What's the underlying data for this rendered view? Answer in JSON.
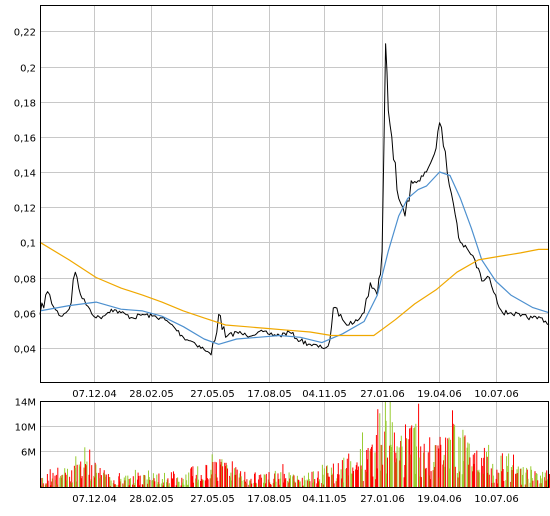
{
  "chart_data": [
    {
      "type": "line",
      "title": "",
      "xlabel": "",
      "ylabel": "",
      "ylim": [
        0.02,
        0.235
      ],
      "y_ticks": [
        0.04,
        0.06,
        0.08,
        0.1,
        0.12,
        0.14,
        0.16,
        0.18,
        0.2,
        0.22
      ],
      "y_tick_labels": [
        "0,04",
        "0,06",
        "0,08",
        "0,1",
        "0,12",
        "0,14",
        "0,16",
        "0,18",
        "0,2",
        "0,22"
      ],
      "x_tick_labels": [
        "07.12.04",
        "28.02.05",
        "27.05.05",
        "17.08.05",
        "04.11.05",
        "27.01.06",
        "19.04.06",
        "10.07.06"
      ],
      "x_tick_dates": [
        "2004-12-07",
        "2005-02-28",
        "2005-05-27",
        "2005-08-17",
        "2005-11-04",
        "2006-01-27",
        "2006-04-19",
        "2006-07-10"
      ],
      "x_range": [
        "2004-09-20",
        "2006-09-25"
      ],
      "grid": true,
      "legend": "none",
      "series": [
        {
          "color": "#000000",
          "x": [
            "2004-09-20",
            "2004-10-01",
            "2004-10-10",
            "2004-10-20",
            "2004-11-01",
            "2004-11-10",
            "2004-11-20",
            "2004-12-01",
            "2004-12-10",
            "2004-12-20",
            "2005-01-01",
            "2005-01-15",
            "2005-02-01",
            "2005-02-15",
            "2005-03-01",
            "2005-03-15",
            "2005-04-01",
            "2005-04-15",
            "2005-05-01",
            "2005-05-15",
            "2005-05-25",
            "2005-06-05",
            "2005-06-15",
            "2005-07-01",
            "2005-07-15",
            "2005-08-01",
            "2005-08-15",
            "2005-09-01",
            "2005-09-15",
            "2005-10-01",
            "2005-10-15",
            "2005-11-01",
            "2005-11-10",
            "2005-11-20",
            "2005-12-01",
            "2005-12-10",
            "2005-12-20",
            "2006-01-01",
            "2006-01-10",
            "2006-01-20",
            "2006-01-27",
            "2006-02-01",
            "2006-02-05",
            "2006-02-10",
            "2006-02-20",
            "2006-03-01",
            "2006-03-10",
            "2006-03-20",
            "2006-04-01",
            "2006-04-10",
            "2006-04-20",
            "2006-05-01",
            "2006-05-10",
            "2006-05-20",
            "2006-06-01",
            "2006-06-10",
            "2006-06-20",
            "2006-07-01",
            "2006-07-10",
            "2006-07-20",
            "2006-08-01",
            "2006-08-15",
            "2006-09-01",
            "2006-09-15",
            "2006-09-25"
          ],
          "values": [
            0.059,
            0.072,
            0.063,
            0.058,
            0.062,
            0.083,
            0.068,
            0.062,
            0.057,
            0.058,
            0.062,
            0.06,
            0.057,
            0.059,
            0.058,
            0.057,
            0.052,
            0.046,
            0.043,
            0.039,
            0.036,
            0.059,
            0.046,
            0.049,
            0.047,
            0.049,
            0.048,
            0.047,
            0.049,
            0.044,
            0.042,
            0.04,
            0.041,
            0.063,
            0.056,
            0.053,
            0.056,
            0.06,
            0.077,
            0.07,
            0.095,
            0.213,
            0.175,
            0.16,
            0.125,
            0.115,
            0.135,
            0.135,
            0.14,
            0.148,
            0.168,
            0.14,
            0.122,
            0.1,
            0.095,
            0.09,
            0.078,
            0.08,
            0.07,
            0.06,
            0.06,
            0.058,
            0.057,
            0.057,
            0.053
          ]
        },
        {
          "color": "#4d90cf",
          "x": [
            "2004-09-20",
            "2004-11-01",
            "2004-12-10",
            "2005-01-15",
            "2005-02-15",
            "2005-03-15",
            "2005-04-15",
            "2005-05-15",
            "2005-06-05",
            "2005-07-01",
            "2005-08-01",
            "2005-09-01",
            "2005-10-01",
            "2005-11-01",
            "2005-12-01",
            "2006-01-01",
            "2006-01-20",
            "2006-02-05",
            "2006-02-20",
            "2006-03-05",
            "2006-03-20",
            "2006-04-01",
            "2006-04-20",
            "2006-05-05",
            "2006-05-20",
            "2006-06-05",
            "2006-06-20",
            "2006-07-10",
            "2006-08-01",
            "2006-09-01",
            "2006-09-25"
          ],
          "values": [
            0.061,
            0.064,
            0.066,
            0.062,
            0.061,
            0.058,
            0.052,
            0.045,
            0.042,
            0.045,
            0.046,
            0.047,
            0.046,
            0.043,
            0.048,
            0.055,
            0.07,
            0.095,
            0.115,
            0.125,
            0.13,
            0.132,
            0.14,
            0.138,
            0.125,
            0.108,
            0.09,
            0.078,
            0.07,
            0.063,
            0.06
          ]
        },
        {
          "color": "#f0a800",
          "x": [
            "2004-09-20",
            "2004-11-01",
            "2004-12-10",
            "2005-01-15",
            "2005-02-15",
            "2005-03-15",
            "2005-04-15",
            "2005-05-15",
            "2005-06-15",
            "2005-07-15",
            "2005-08-15",
            "2005-09-15",
            "2005-10-15",
            "2005-11-15",
            "2005-12-15",
            "2006-01-15",
            "2006-02-15",
            "2006-03-15",
            "2006-04-15",
            "2006-05-15",
            "2006-06-15",
            "2006-07-15",
            "2006-08-15",
            "2006-09-10",
            "2006-09-25"
          ],
          "values": [
            0.1,
            0.09,
            0.08,
            0.074,
            0.07,
            0.066,
            0.061,
            0.057,
            0.053,
            0.052,
            0.051,
            0.05,
            0.049,
            0.047,
            0.047,
            0.047,
            0.056,
            0.065,
            0.073,
            0.083,
            0.09,
            0.092,
            0.094,
            0.096,
            0.096
          ]
        }
      ]
    },
    {
      "type": "bar",
      "title": "",
      "xlabel": "",
      "ylabel": "",
      "ylim": [
        0,
        14
      ],
      "y_ticks": [
        6,
        10,
        14
      ],
      "y_tick_labels": [
        "6M",
        "10M",
        "14M"
      ],
      "x_tick_labels": [
        "07.12.04",
        "28.02.05",
        "27.05.05",
        "17.08.05",
        "04.11.05",
        "27.01.06",
        "19.04.06",
        "10.07.06"
      ],
      "x_tick_dates": [
        "2004-12-07",
        "2005-02-28",
        "2005-05-27",
        "2005-08-17",
        "2005-11-04",
        "2006-01-27",
        "2006-04-19",
        "2006-07-10"
      ],
      "x_range": [
        "2004-09-20",
        "2006-09-25"
      ],
      "grid": true,
      "legend": "none",
      "colors": {
        "up": "#99cc33",
        "down": "#ff0000"
      },
      "series": [
        {
          "x": [
            "2004-10-01",
            "2004-11-10",
            "2004-12-01",
            "2005-01-01",
            "2005-02-01",
            "2005-03-01",
            "2005-04-01",
            "2005-05-01",
            "2005-06-05",
            "2005-07-01",
            "2005-08-01",
            "2005-09-01",
            "2005-10-01",
            "2005-11-15",
            "2005-12-10",
            "2006-01-10",
            "2006-01-27",
            "2006-02-01",
            "2006-02-05",
            "2006-02-20",
            "2006-03-10",
            "2006-04-01",
            "2006-04-20",
            "2006-05-10",
            "2006-06-01",
            "2006-07-01",
            "2006-08-01",
            "2006-09-01"
          ],
          "values": [
            2.0,
            4.5,
            5.0,
            2.0,
            2.5,
            2.5,
            2.0,
            3.0,
            5.0,
            3.0,
            2.5,
            3.0,
            2.0,
            4.0,
            5.5,
            7.0,
            11.0,
            14.0,
            13.0,
            9.0,
            11.5,
            8.0,
            9.0,
            12.0,
            8.0,
            5.0,
            4.0,
            3.0
          ]
        }
      ]
    }
  ]
}
